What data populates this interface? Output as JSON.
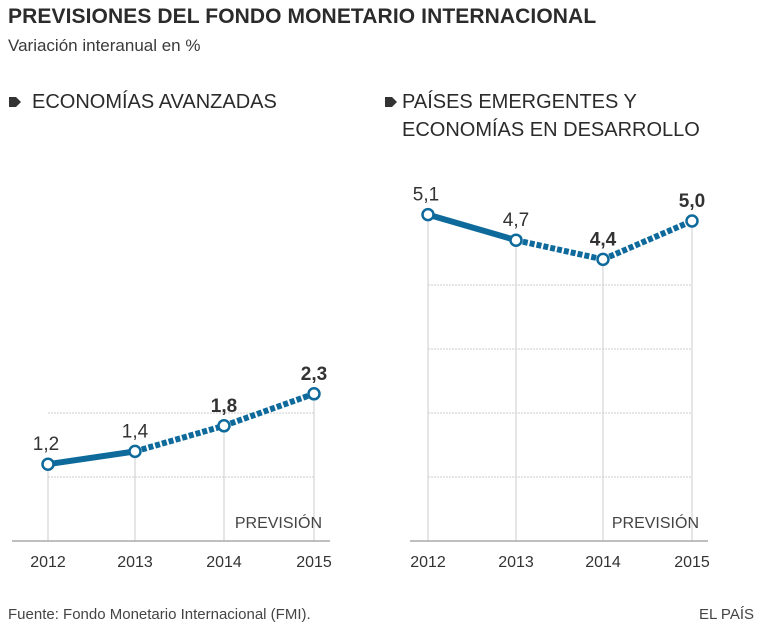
{
  "header": {
    "title": "PREVISIONES DEL FONDO MONETARIO INTERNACIONAL",
    "subtitle": "Variación interanual en %"
  },
  "footer": {
    "source": "Fuente: Fondo Monetario Internacional (FMI).",
    "brand": "EL PAÍS"
  },
  "colors": {
    "line": "#0f6a9c",
    "grid": "#cccccc",
    "text": "#333333"
  },
  "chart_data": [
    {
      "type": "line",
      "title": "ECONOMÍAS AVANZADAS",
      "title_lines": [
        "ECONOMÍAS AVANZADAS"
      ],
      "x": [
        "2012",
        "2013",
        "2014",
        "2015"
      ],
      "values": [
        1.2,
        1.4,
        1.8,
        2.3
      ],
      "labels": [
        "1,2",
        "1,4",
        "1,8",
        "2,3"
      ],
      "label_bold": [
        false,
        false,
        true,
        true
      ],
      "forecast_from_index": 1,
      "forecast_label": "PREVISIÓN",
      "ylim": [
        0,
        2.5
      ],
      "gridlines": [
        1,
        2
      ],
      "grid": true,
      "xlabel": "",
      "ylabel": ""
    },
    {
      "type": "line",
      "title": "PAÍSES EMERGENTES Y ECONOMÍAS EN DESARROLLO",
      "title_lines": [
        "PAÍSES EMERGENTES Y",
        "ECONOMÍAS EN DESARROLLO"
      ],
      "x": [
        "2012",
        "2013",
        "2014",
        "2015"
      ],
      "values": [
        5.1,
        4.7,
        4.4,
        5.0
      ],
      "labels": [
        "5,1",
        "4,7",
        "4,4",
        "5,0"
      ],
      "label_bold": [
        false,
        false,
        true,
        true
      ],
      "forecast_from_index": 1,
      "forecast_label": "PREVISIÓN",
      "ylim": [
        0,
        5.5
      ],
      "gridlines": [
        1,
        2,
        3,
        4
      ],
      "grid": true,
      "xlabel": "",
      "ylabel": ""
    }
  ]
}
